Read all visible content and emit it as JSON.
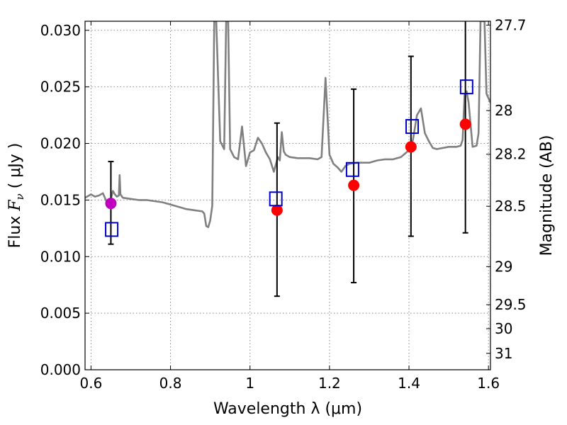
{
  "chart_data": {
    "type": "scatter",
    "xlabel": "Wavelength  λ (μm)",
    "ylabel_prefix": "Flux  ",
    "ylabel_symbol": "F",
    "ylabel_sub": "ν",
    "ylabel_unit": "  ( μJy )",
    "y2label": "Magnitude (AB)",
    "xlim": [
      0.585,
      1.605
    ],
    "ylim": [
      0.0,
      0.0308
    ],
    "grid": true,
    "grid_style": "dotted",
    "xticks": [
      0.6,
      0.8,
      1.0,
      1.2,
      1.4,
      1.6
    ],
    "xtick_labels": [
      "0.6",
      "0.8",
      "1",
      "1.2",
      "1.4",
      "1.6"
    ],
    "yticks": [
      0.0,
      0.005,
      0.01,
      0.015,
      0.02,
      0.025,
      0.03
    ],
    "ytick_labels": [
      "0.000",
      "0.005",
      "0.010",
      "0.015",
      "0.020",
      "0.025",
      "0.030"
    ],
    "y2ticks": [
      {
        "label": "27.7",
        "flux": 0.03046
      },
      {
        "label": "28",
        "flux": 0.02291
      },
      {
        "label": "28.2",
        "flux": 0.01905
      },
      {
        "label": "28.5",
        "flux": 0.01445
      },
      {
        "label": "29",
        "flux": 0.00912
      },
      {
        "label": "29.5",
        "flux": 0.00575
      },
      {
        "label": "30",
        "flux": 0.00363
      },
      {
        "label": "31",
        "flux": 0.00145
      }
    ],
    "colors": {
      "spectrum": "#808080",
      "photometry": "#ff0000",
      "first_point": "#bf00bf",
      "model": "#0000cc",
      "errorbar": "#000000",
      "grid": "#888888"
    },
    "series": [
      {
        "kind": "spectrum",
        "points": [
          [
            0.585,
            0.0152
          ],
          [
            0.6,
            0.0155
          ],
          [
            0.61,
            0.0153
          ],
          [
            0.62,
            0.0154
          ],
          [
            0.63,
            0.0156
          ],
          [
            0.64,
            0.0148
          ],
          [
            0.645,
            0.0145
          ],
          [
            0.65,
            0.0151
          ],
          [
            0.655,
            0.0158
          ],
          [
            0.66,
            0.0155
          ],
          [
            0.665,
            0.0153
          ],
          [
            0.67,
            0.0154
          ],
          [
            0.672,
            0.0172
          ],
          [
            0.674,
            0.0155
          ],
          [
            0.68,
            0.0152
          ],
          [
            0.7,
            0.0151
          ],
          [
            0.72,
            0.015
          ],
          [
            0.74,
            0.015
          ],
          [
            0.76,
            0.0149
          ],
          [
            0.78,
            0.0148
          ],
          [
            0.8,
            0.0146
          ],
          [
            0.82,
            0.0144
          ],
          [
            0.84,
            0.0142
          ],
          [
            0.86,
            0.0141
          ],
          [
            0.88,
            0.014
          ],
          [
            0.885,
            0.0138
          ],
          [
            0.89,
            0.0127
          ],
          [
            0.895,
            0.0126
          ],
          [
            0.9,
            0.0132
          ],
          [
            0.905,
            0.0145
          ],
          [
            0.91,
            0.0308
          ],
          [
            0.915,
            0.0308
          ],
          [
            0.925,
            0.0202
          ],
          [
            0.935,
            0.0195
          ],
          [
            0.94,
            0.0308
          ],
          [
            0.945,
            0.0308
          ],
          [
            0.95,
            0.0195
          ],
          [
            0.96,
            0.0188
          ],
          [
            0.97,
            0.0186
          ],
          [
            0.98,
            0.0215
          ],
          [
            0.99,
            0.018
          ],
          [
            1.0,
            0.0192
          ],
          [
            1.01,
            0.0194
          ],
          [
            1.02,
            0.0205
          ],
          [
            1.03,
            0.02
          ],
          [
            1.04,
            0.0192
          ],
          [
            1.05,
            0.0186
          ],
          [
            1.06,
            0.0175
          ],
          [
            1.07,
            0.0188
          ],
          [
            1.075,
            0.0185
          ],
          [
            1.08,
            0.021
          ],
          [
            1.085,
            0.0193
          ],
          [
            1.09,
            0.019
          ],
          [
            1.1,
            0.0188
          ],
          [
            1.12,
            0.0187
          ],
          [
            1.15,
            0.0187
          ],
          [
            1.17,
            0.0186
          ],
          [
            1.18,
            0.0188
          ],
          [
            1.19,
            0.0258
          ],
          [
            1.2,
            0.019
          ],
          [
            1.21,
            0.0182
          ],
          [
            1.22,
            0.0179
          ],
          [
            1.23,
            0.0175
          ],
          [
            1.24,
            0.018
          ],
          [
            1.25,
            0.0182
          ],
          [
            1.27,
            0.0183
          ],
          [
            1.3,
            0.0183
          ],
          [
            1.32,
            0.0185
          ],
          [
            1.34,
            0.0186
          ],
          [
            1.36,
            0.0186
          ],
          [
            1.38,
            0.0188
          ],
          [
            1.39,
            0.0191
          ],
          [
            1.4,
            0.0194
          ],
          [
            1.41,
            0.0203
          ],
          [
            1.42,
            0.0225
          ],
          [
            1.43,
            0.0231
          ],
          [
            1.44,
            0.0209
          ],
          [
            1.45,
            0.0202
          ],
          [
            1.46,
            0.0196
          ],
          [
            1.47,
            0.0195
          ],
          [
            1.5,
            0.0197
          ],
          [
            1.52,
            0.0197
          ],
          [
            1.53,
            0.0198
          ],
          [
            1.535,
            0.0203
          ],
          [
            1.54,
            0.0243
          ],
          [
            1.545,
            0.0246
          ],
          [
            1.55,
            0.0236
          ],
          [
            1.56,
            0.0197
          ],
          [
            1.57,
            0.0198
          ],
          [
            1.575,
            0.0209
          ],
          [
            1.58,
            0.0308
          ],
          [
            1.585,
            0.0308
          ],
          [
            1.59,
            0.0308
          ],
          [
            1.595,
            0.0244
          ],
          [
            1.6,
            0.024
          ],
          [
            1.605,
            0.0236
          ]
        ]
      },
      {
        "kind": "photometry",
        "points": [
          {
            "x": 0.65,
            "y": 0.0147,
            "err_low": 0.0111,
            "err_high": 0.0184
          },
          {
            "x": 1.068,
            "y": 0.0141,
            "err_low": 0.0065,
            "err_high": 0.0218
          },
          {
            "x": 1.261,
            "y": 0.0163,
            "err_low": 0.0077,
            "err_high": 0.0248
          },
          {
            "x": 1.405,
            "y": 0.0197,
            "err_low": 0.0118,
            "err_high": 0.0277
          },
          {
            "x": 1.542,
            "y": 0.0217,
            "err_low": 0.0121,
            "err_high": 0.0308
          }
        ]
      },
      {
        "kind": "model",
        "points": [
          {
            "x": 0.652,
            "y": 0.0124
          },
          {
            "x": 1.065,
            "y": 0.0151
          },
          {
            "x": 1.258,
            "y": 0.0177
          },
          {
            "x": 1.408,
            "y": 0.0215
          },
          {
            "x": 1.545,
            "y": 0.025
          }
        ]
      }
    ]
  }
}
